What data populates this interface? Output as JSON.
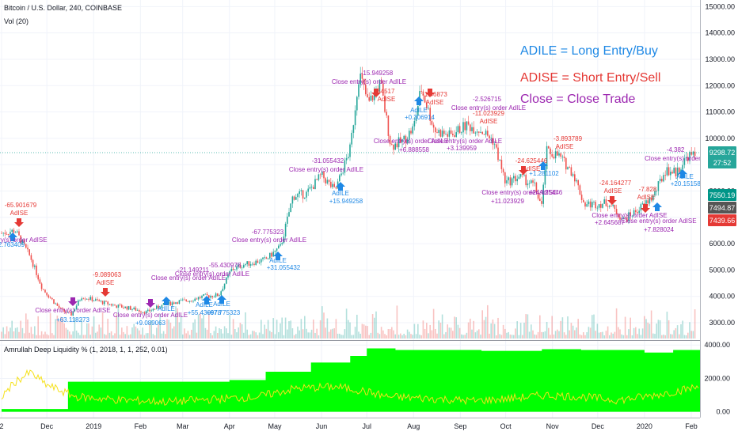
{
  "header": {
    "title": "Bitcoin / U.S. Dollar, 240, COINBASE",
    "volume_label": "Vol (20)",
    "indicator_label": "Amrullah Deep Liquidity % (1, 2018, 1, 1, 252, 0.01)"
  },
  "legend": [
    {
      "text": "ADILE = Long Entry/Buy",
      "color": "#1e88e5"
    },
    {
      "text": "ADISE = Short Entry/Sell",
      "color": "#e53935"
    },
    {
      "text": "Close = Close Trade",
      "color": "#9c27b0"
    }
  ],
  "time_axis": {
    "labels": [
      "2",
      "Dec",
      "2019",
      "Feb",
      "Mar",
      "Apr",
      "May",
      "Jun",
      "Jul",
      "Aug",
      "Sep",
      "Oct",
      "Nov",
      "Dec",
      "2020",
      "Feb"
    ]
  },
  "price_badges": [
    {
      "label": "9298.72",
      "bg": "#26a69a"
    },
    {
      "label": "27:52",
      "bg": "#26a69a"
    },
    {
      "label": "7550.19",
      "bg": "#009688"
    },
    {
      "label": "7494.87",
      "bg": "#555555"
    },
    {
      "label": "7439.66",
      "bg": "#e53935"
    }
  ],
  "colors": {
    "up": "#26a69a",
    "down": "#ef5350",
    "long": "#1e88e5",
    "short": "#e53935",
    "close": "#9c27b0",
    "liquidity_area": "#00ff00",
    "liquidity_line": "#f5e11b"
  },
  "chart_data": [
    {
      "type": "line",
      "title": "Bitcoin / U.S. Dollar, 240, COINBASE",
      "yticks": [
        3000,
        4000,
        5000,
        6000,
        7000,
        8000,
        9000,
        10000,
        11000,
        12000,
        13000,
        14000,
        15000
      ],
      "ytick_labels": [
        "3000.00",
        "4000.00",
        "5000.00",
        "6000.00",
        "7000.00",
        "8000.00",
        "9000.00",
        "10000.00",
        "11000.00",
        "12000.00",
        "13000.00",
        "14000.00",
        "15000.00"
      ],
      "ylim": [
        2400,
        15100
      ],
      "x": [
        "2018-11-01",
        "2018-11-10",
        "2018-11-20",
        "2018-11-28",
        "2018-12-10",
        "2018-12-17",
        "2018-12-24",
        "2019-01-05",
        "2019-01-15",
        "2019-01-25",
        "2019-02-05",
        "2019-02-15",
        "2019-02-25",
        "2019-03-05",
        "2019-03-15",
        "2019-03-25",
        "2019-04-02",
        "2019-04-10",
        "2019-04-25",
        "2019-05-05",
        "2019-05-13",
        "2019-05-22",
        "2019-06-01",
        "2019-06-10",
        "2019-06-20",
        "2019-06-26",
        "2019-07-02",
        "2019-07-10",
        "2019-07-17",
        "2019-07-25",
        "2019-08-01",
        "2019-08-06",
        "2019-08-15",
        "2019-08-25",
        "2019-09-05",
        "2019-09-15",
        "2019-09-23",
        "2019-10-01",
        "2019-10-10",
        "2019-10-20",
        "2019-10-25",
        "2019-10-28",
        "2019-11-05",
        "2019-11-15",
        "2019-11-22",
        "2019-11-29",
        "2019-12-08",
        "2019-12-18",
        "2019-12-28",
        "2020-01-07",
        "2020-01-15",
        "2020-01-22",
        "2020-01-30",
        "2020-02-06"
      ],
      "values": [
        6400,
        6500,
        5500,
        4300,
        3500,
        3300,
        4000,
        3800,
        3650,
        3550,
        3400,
        3650,
        3800,
        3850,
        4000,
        4050,
        5000,
        5200,
        5400,
        5900,
        7800,
        7900,
        8600,
        8000,
        9600,
        12500,
        11300,
        12100,
        9700,
        9900,
        10400,
        11900,
        10300,
        10100,
        10500,
        10300,
        9900,
        8300,
        8550,
        8200,
        7400,
        9500,
        9350,
        8650,
        7500,
        7500,
        7550,
        6900,
        7300,
        7800,
        8800,
        8700,
        9350,
        9300
      ]
    },
    {
      "type": "area",
      "title": "Amrullah Deep Liquidity % (1, 2018, 1, 1, 252, 0.01)",
      "yticks": [
        0,
        2000,
        4000
      ],
      "ytick_labels": [
        "0.00",
        "2000.00",
        "4000.00"
      ],
      "ylim": [
        -300,
        4200
      ],
      "series": [
        {
          "name": "",
          "x": [
            "2018-11-01",
            "2018-12-15",
            "2019-04-01",
            "2019-04-25",
            "2019-05-25",
            "2019-06-20",
            "2019-07-01",
            "2019-07-20",
            "2019-09-15",
            "2019-10-25",
            "2019-11-20",
            "2020-01-01",
            "2020-01-20",
            "2020-02-10"
          ],
          "values": [
            170,
            1800,
            1900,
            2400,
            2950,
            3350,
            3800,
            3700,
            3650,
            3750,
            3700,
            3550,
            3700,
            3650
          ]
        },
        {
          "name": "",
          "x": [
            "2018-11-01",
            "2018-11-10",
            "2018-11-20",
            "2018-12-01",
            "2018-12-20",
            "2019-01-20",
            "2019-02-20",
            "2019-03-20",
            "2019-04-20",
            "2019-05-15",
            "2019-06-10",
            "2019-06-26",
            "2019-07-15",
            "2019-08-10",
            "2019-09-10",
            "2019-10-05",
            "2019-10-28",
            "2019-11-20",
            "2019-12-15",
            "2020-01-05",
            "2020-01-20",
            "2020-02-06"
          ],
          "values": [
            900,
            1800,
            2350,
            1600,
            900,
            700,
            600,
            750,
            900,
            1400,
            1500,
            1300,
            900,
            800,
            650,
            800,
            1000,
            900,
            700,
            950,
            1200,
            1500
          ]
        }
      ]
    }
  ]
}
